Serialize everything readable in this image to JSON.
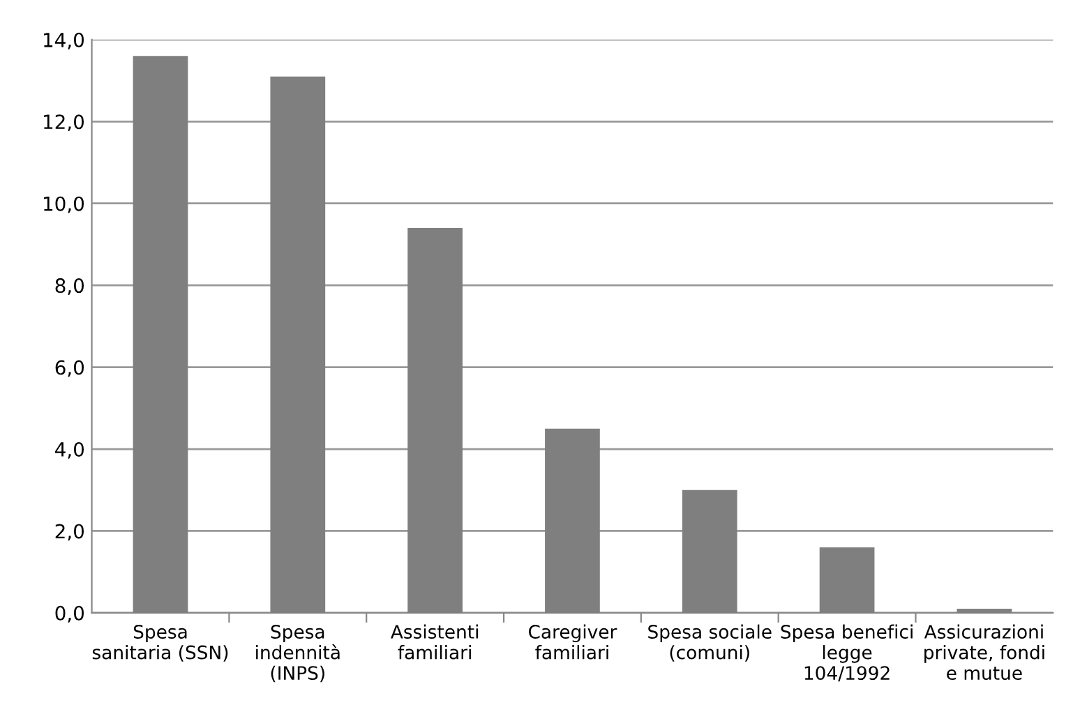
{
  "chart_data": {
    "type": "bar",
    "categories": [
      "Spesa\nsanitaria (SSN)",
      "Spesa\nindennità\n(INPS)",
      "Assistenti\nfamiliari",
      "Caregiver\nfamiliari",
      "Spesa sociale\n(comuni)",
      "Spesa benefici\nlegge\n104/1992",
      "Assicurazioni\nprivate, fondi\ne mutue"
    ],
    "values": [
      13.6,
      13.1,
      9.4,
      4.5,
      3.0,
      1.6,
      0.1
    ],
    "color": "#7f7f7f",
    "ylim": [
      0,
      14
    ],
    "yticks": [
      {
        "value": 0,
        "label": "0,0"
      },
      {
        "value": 2,
        "label": "2,0"
      },
      {
        "value": 4,
        "label": "4,0"
      },
      {
        "value": 6,
        "label": "6,0"
      },
      {
        "value": 8,
        "label": "8,0"
      },
      {
        "value": 10,
        "label": "10,0"
      },
      {
        "value": 12,
        "label": "12,0"
      },
      {
        "value": 14,
        "label": "14,0"
      }
    ],
    "grid": "y"
  }
}
